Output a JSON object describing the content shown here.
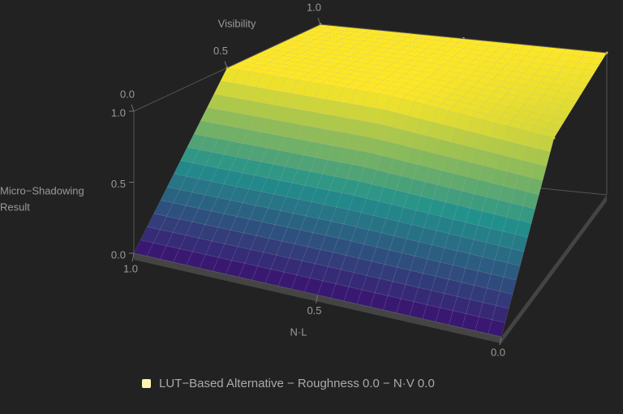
{
  "chart_data": {
    "type": "surface3d",
    "legend": "LUT−Based Alternative − Roughness 0.0 − N·V 0.0",
    "x_label": "N·L",
    "y_label": "Visibility",
    "z_label": [
      "Micro−Shadowing",
      "Result"
    ],
    "x": [
      0,
      0.5,
      1
    ],
    "y": [
      0,
      0.5,
      1
    ],
    "z": [
      [
        0,
        0,
        0
      ],
      [
        0.9,
        1,
        1
      ],
      [
        1,
        1,
        1
      ]
    ],
    "xlim": [
      0,
      1
    ],
    "ylim": [
      0,
      1
    ],
    "zlim": [
      0,
      1
    ],
    "xticks": [
      {
        "value": 0,
        "label": "0.0"
      },
      0.5,
      {
        "value": 1,
        "label": "1.0"
      }
    ],
    "yticks": [
      {
        "value": 0,
        "label": "0.0"
      },
      0.5,
      {
        "value": 1,
        "label": "1.0"
      }
    ],
    "zticks": [
      {
        "value": 0,
        "label": "0.0"
      },
      0.5,
      {
        "value": 1,
        "label": "1.0"
      }
    ],
    "colormap": [
      "#3b0f70",
      "#21918c",
      "#fde725"
    ],
    "legend_color": "#fff4b0"
  }
}
